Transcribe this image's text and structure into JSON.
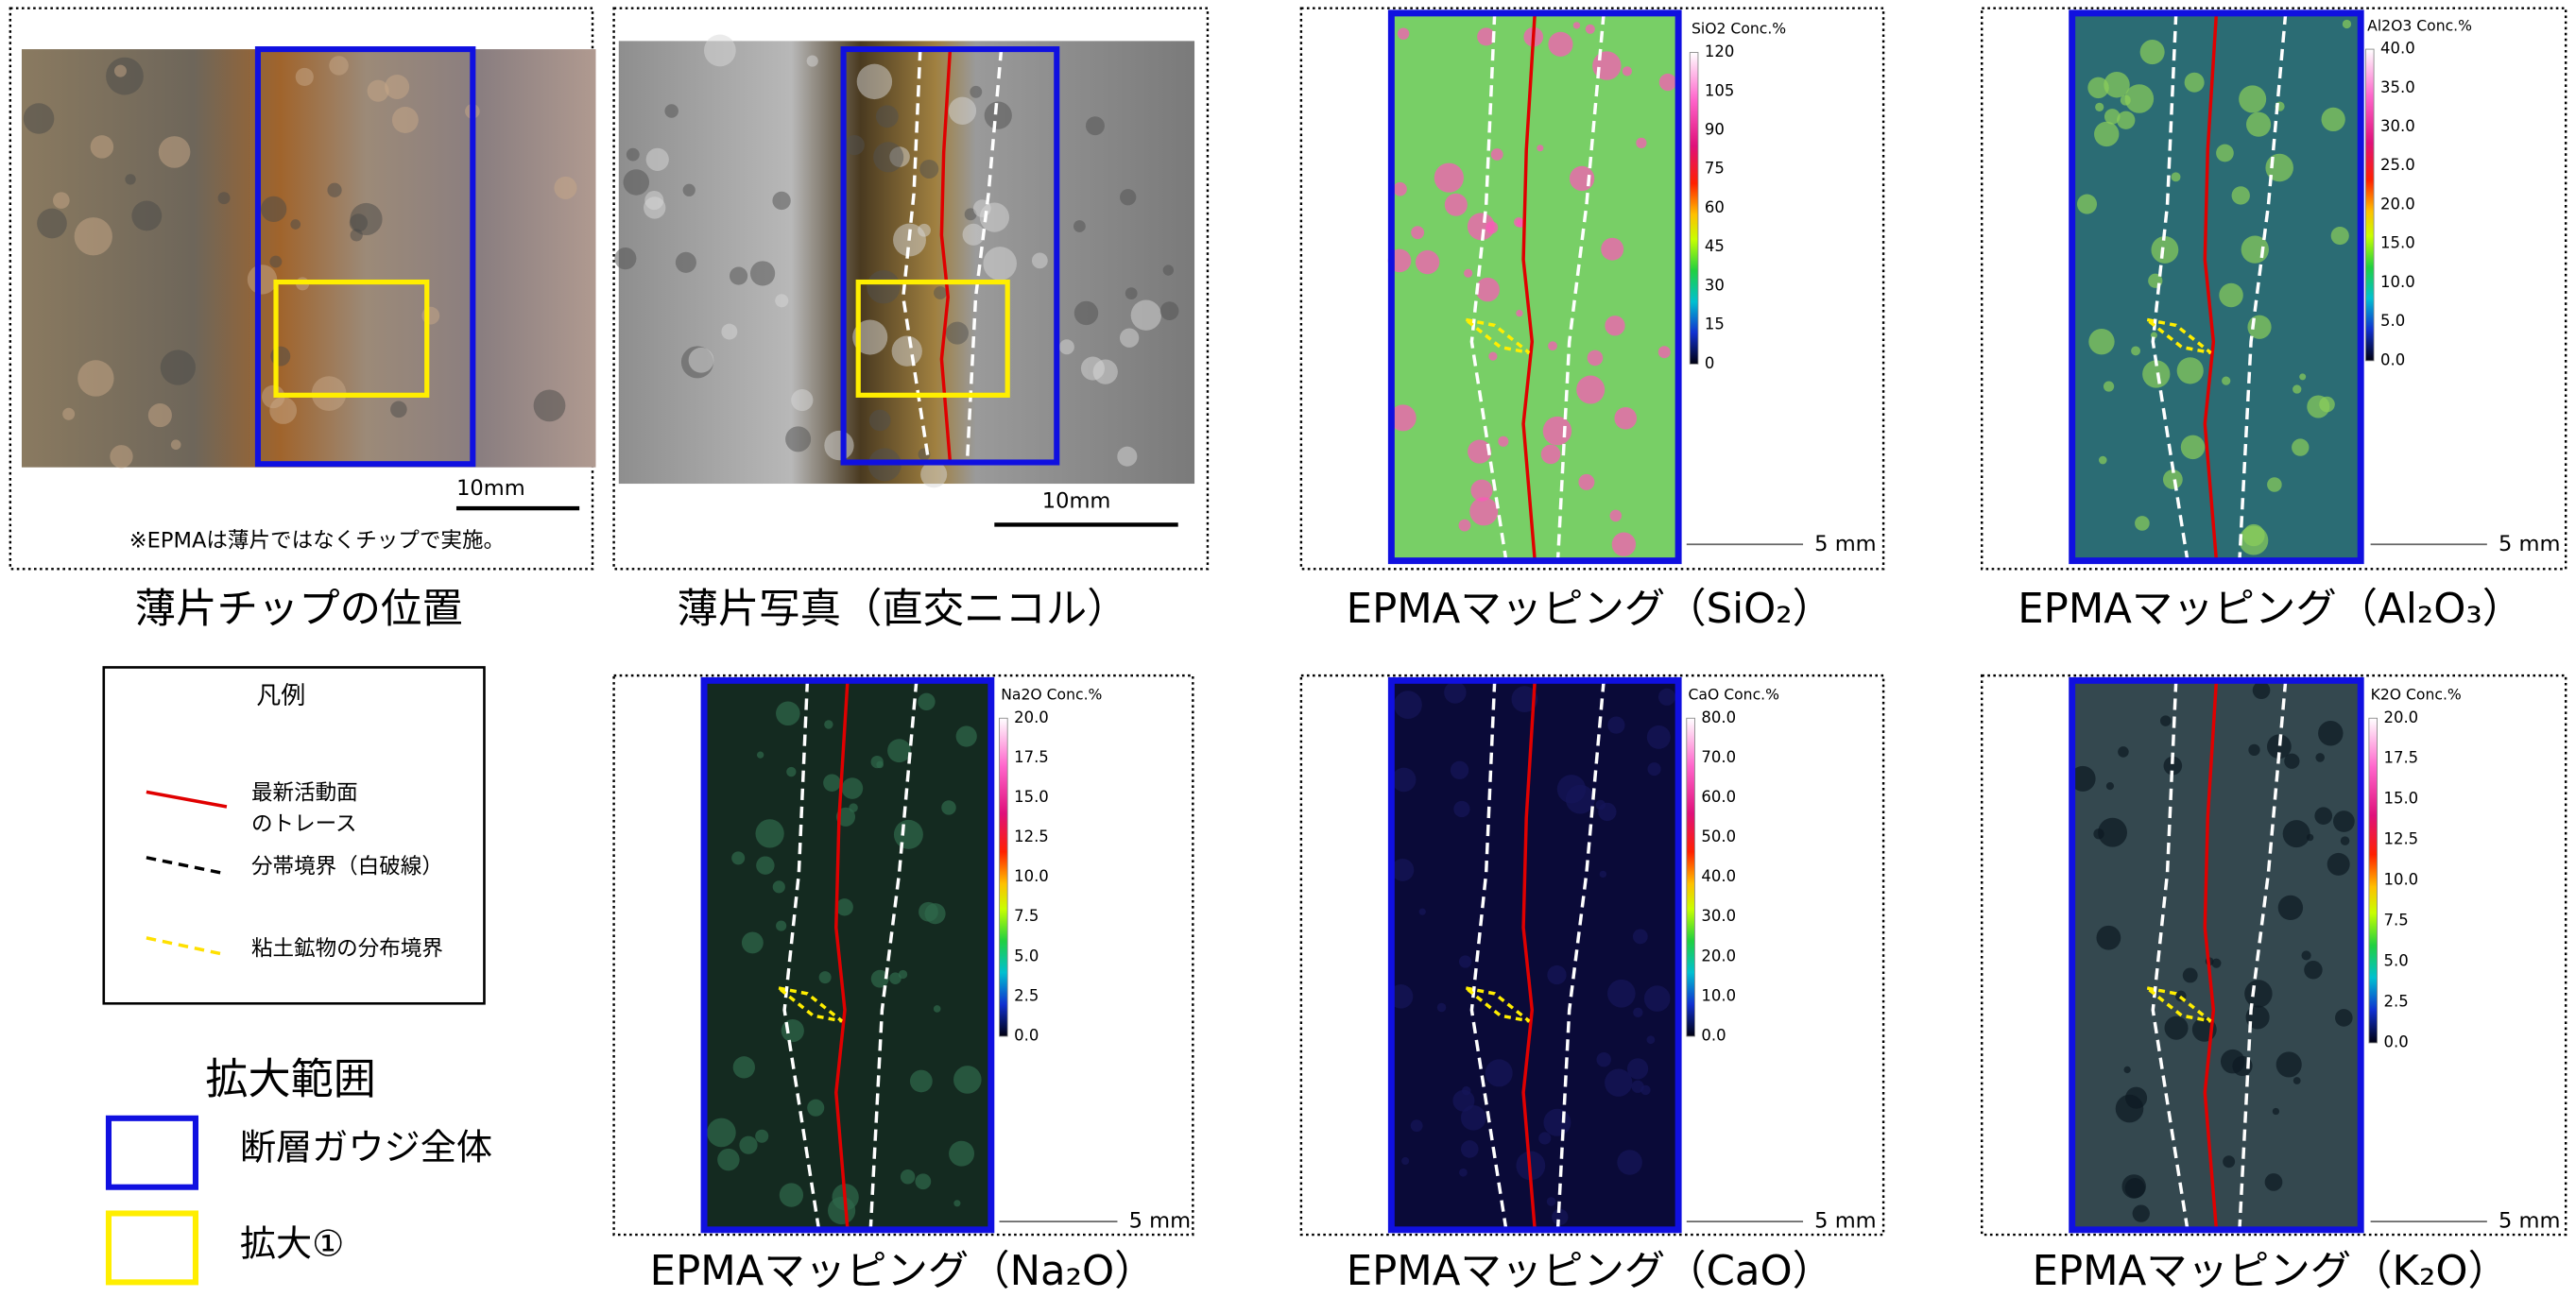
{
  "panels": [
    {
      "caption": "薄片チップの位置",
      "scale_label": "10mm",
      "note": "※EPMAは薄片ではなくチップで実施。"
    },
    {
      "caption": "薄片写真（直交ニコル）",
      "scale_label": "10mm"
    },
    {
      "caption": "EPMAマッピング（SiO₂）",
      "scale_label": "5 mm",
      "colorbar": {
        "title": "SiO2 Conc.%",
        "ticks": [
          "120",
          "105",
          "90",
          "75",
          "60",
          "45",
          "30",
          "15",
          "0"
        ]
      }
    },
    {
      "caption": "EPMAマッピング（Al₂O₃）",
      "scale_label": "5 mm",
      "colorbar": {
        "title": "Al2O3 Conc.%",
        "ticks": [
          "40.0",
          "35.0",
          "30.0",
          "25.0",
          "20.0",
          "15.0",
          "10.0",
          "5.0",
          "0.0"
        ]
      }
    },
    {
      "caption": "EPMAマッピング（Na₂O）",
      "scale_label": "5 mm",
      "colorbar": {
        "title": "Na2O Conc.%",
        "ticks": [
          "20.0",
          "17.5",
          "15.0",
          "12.5",
          "10.0",
          "7.5",
          "5.0",
          "2.5",
          "0.0"
        ]
      }
    },
    {
      "caption": "EPMAマッピング（CaO）",
      "scale_label": "5 mm",
      "colorbar": {
        "title": "CaO Conc.%",
        "ticks": [
          "80.0",
          "70.0",
          "60.0",
          "50.0",
          "40.0",
          "30.0",
          "20.0",
          "10.0",
          "0.0"
        ]
      }
    },
    {
      "caption": "EPMAマッピング（K₂O）",
      "scale_label": "5 mm",
      "colorbar": {
        "title": "K2O Conc.%",
        "ticks": [
          "20.0",
          "17.5",
          "15.0",
          "12.5",
          "10.0",
          "7.5",
          "5.0",
          "2.5",
          "0.0"
        ]
      }
    }
  ],
  "legend": {
    "title": "凡例",
    "items": [
      {
        "label_lines": [
          "最新活動面",
          "のトレース"
        ]
      },
      {
        "label": "分帯境界（白破線）"
      },
      {
        "label": "粘土鉱物の分布境界"
      }
    ]
  },
  "zoom_range": {
    "title": "拡大範囲",
    "items": [
      "断層ガウジ全体",
      "拡大①"
    ]
  }
}
